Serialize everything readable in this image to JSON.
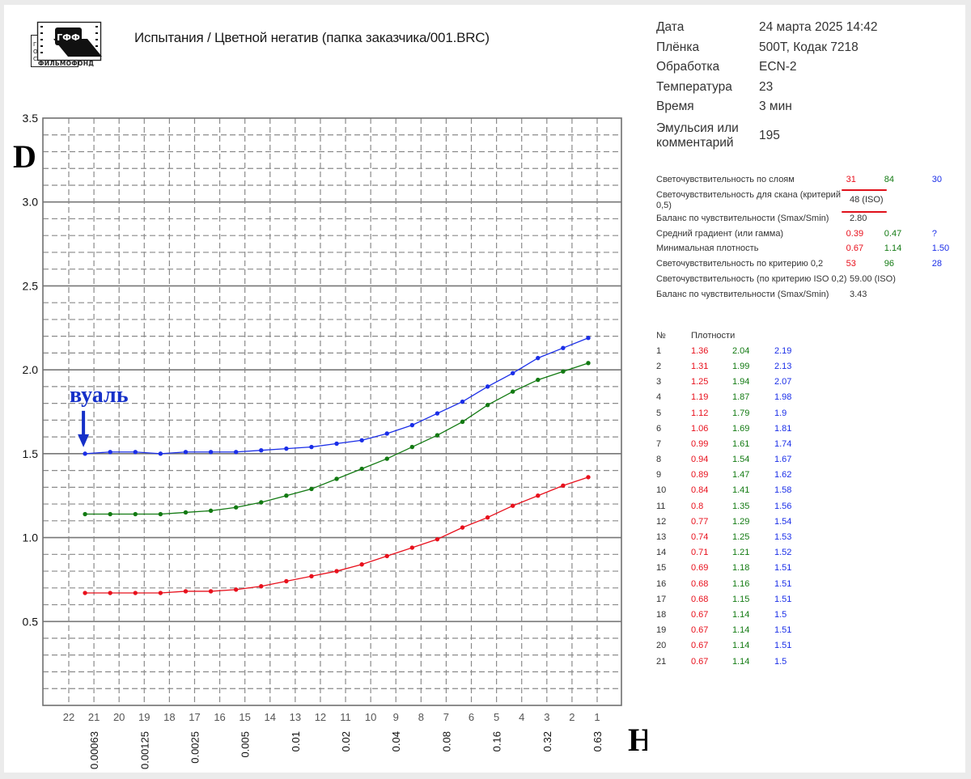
{
  "header": {
    "logo": {
      "top_text": "ГФФ",
      "side_text": "ГОС",
      "bottom_text": "ФИЛЬМОФОНД"
    },
    "title": "Испытания / Цветной негатив (папка заказчика/001.BRC)"
  },
  "info": [
    {
      "key": "Дата",
      "value": "24 марта 2025 14:42"
    },
    {
      "key": "Плёнка",
      "value": "500T, Кодак 7218"
    },
    {
      "key": "Обработка",
      "value": "ECN-2"
    },
    {
      "key": "Температура",
      "value": "23"
    },
    {
      "key": "Время",
      "value": "3 мин"
    },
    {
      "key": "Эмульсия или комментарий",
      "value": "195"
    }
  ],
  "params": [
    {
      "key": "Светочувствительность по слоям",
      "r": "31",
      "g": "84",
      "b": "30"
    },
    {
      "key": "Светочувствительность для скана (критерий 0,5)",
      "value": "48 (ISO)",
      "highlighted": true
    },
    {
      "key": "Баланс по чувствительности (Smax/Smin)",
      "value": "2.80"
    },
    {
      "key": "Средний градиент (или гамма)",
      "r": "0.39",
      "g": "0.47",
      "b": "?"
    },
    {
      "key": "Минимальная плотность",
      "r": "0.67",
      "g": "1.14",
      "b": "1.50"
    },
    {
      "key": "Светочувствительность по критерию 0,2",
      "r": "53",
      "g": "96",
      "b": "28"
    },
    {
      "key": "Светочувствительность (по критерию ISO 0,2)",
      "value": "59.00 (ISO)"
    },
    {
      "key": "Баланс по чувствительности (Smax/Smin)",
      "value": "3.43"
    }
  ],
  "densities": {
    "header_no": "№",
    "header_label": "Плотности",
    "rows": [
      {
        "n": "1",
        "r": "1.36",
        "g": "2.04",
        "b": "2.19"
      },
      {
        "n": "2",
        "r": "1.31",
        "g": "1.99",
        "b": "2.13"
      },
      {
        "n": "3",
        "r": "1.25",
        "g": "1.94",
        "b": "2.07"
      },
      {
        "n": "4",
        "r": "1.19",
        "g": "1.87",
        "b": "1.98"
      },
      {
        "n": "5",
        "r": "1.12",
        "g": "1.79",
        "b": "1.9"
      },
      {
        "n": "6",
        "r": "1.06",
        "g": "1.69",
        "b": "1.81"
      },
      {
        "n": "7",
        "r": "0.99",
        "g": "1.61",
        "b": "1.74"
      },
      {
        "n": "8",
        "r": "0.94",
        "g": "1.54",
        "b": "1.67"
      },
      {
        "n": "9",
        "r": "0.89",
        "g": "1.47",
        "b": "1.62"
      },
      {
        "n": "10",
        "r": "0.84",
        "g": "1.41",
        "b": "1.58"
      },
      {
        "n": "11",
        "r": "0.8",
        "g": "1.35",
        "b": "1.56"
      },
      {
        "n": "12",
        "r": "0.77",
        "g": "1.29",
        "b": "1.54"
      },
      {
        "n": "13",
        "r": "0.74",
        "g": "1.25",
        "b": "1.53"
      },
      {
        "n": "14",
        "r": "0.71",
        "g": "1.21",
        "b": "1.52"
      },
      {
        "n": "15",
        "r": "0.69",
        "g": "1.18",
        "b": "1.51"
      },
      {
        "n": "16",
        "r": "0.68",
        "g": "1.16",
        "b": "1.51"
      },
      {
        "n": "17",
        "r": "0.68",
        "g": "1.15",
        "b": "1.51"
      },
      {
        "n": "18",
        "r": "0.67",
        "g": "1.14",
        "b": "1.5"
      },
      {
        "n": "19",
        "r": "0.67",
        "g": "1.14",
        "b": "1.51"
      },
      {
        "n": "20",
        "r": "0.67",
        "g": "1.14",
        "b": "1.51"
      },
      {
        "n": "21",
        "r": "0.67",
        "g": "1.14",
        "b": "1.5"
      }
    ]
  },
  "colors": {
    "red": "#e8101c",
    "green": "#127a12",
    "blue": "#1a2ee8",
    "annotation": "#1530c8",
    "grid": "#8a8a8a",
    "axis": "#707070"
  },
  "chart_data": {
    "type": "line",
    "title": "",
    "xlabel": "H",
    "ylabel": "D",
    "ylim": [
      0,
      3.5
    ],
    "y_ticks": [
      "3.5",
      "3.0",
      "2.5",
      "2.0",
      "1.5",
      "1.0",
      "0.5"
    ],
    "x_step_labels": [
      "22",
      "21",
      "20",
      "19",
      "18",
      "17",
      "16",
      "15",
      "14",
      "13",
      "12",
      "11",
      "10",
      "9",
      "8",
      "7",
      "6",
      "5",
      "4",
      "3",
      "2",
      "1"
    ],
    "x_exposure_labels": [
      {
        "step": 21,
        "label": "0.00063"
      },
      {
        "step": 19,
        "label": "0.00125"
      },
      {
        "step": 17,
        "label": "0.0025"
      },
      {
        "step": 15,
        "label": "0.005"
      },
      {
        "step": 13,
        "label": "0.01"
      },
      {
        "step": 11,
        "label": "0.02"
      },
      {
        "step": 9,
        "label": "0.04"
      },
      {
        "step": 7,
        "label": "0.08"
      },
      {
        "step": 5,
        "label": "0.16"
      },
      {
        "step": 3,
        "label": "0.32"
      },
      {
        "step": 1,
        "label": "0.63"
      }
    ],
    "grid": true,
    "x": [
      21,
      20,
      19,
      18,
      17,
      16,
      15,
      14,
      13,
      12,
      11,
      10,
      9,
      8,
      7,
      6,
      5,
      4,
      3,
      2,
      1
    ],
    "series": [
      {
        "name": "Blue",
        "color": "#1a2ee8",
        "values": [
          1.5,
          1.51,
          1.51,
          1.5,
          1.51,
          1.51,
          1.51,
          1.52,
          1.53,
          1.54,
          1.56,
          1.58,
          1.62,
          1.67,
          1.74,
          1.81,
          1.9,
          1.98,
          2.07,
          2.13,
          2.19
        ]
      },
      {
        "name": "Green",
        "color": "#127a12",
        "values": [
          1.14,
          1.14,
          1.14,
          1.14,
          1.15,
          1.16,
          1.18,
          1.21,
          1.25,
          1.29,
          1.35,
          1.41,
          1.47,
          1.54,
          1.61,
          1.69,
          1.79,
          1.87,
          1.94,
          1.99,
          2.04
        ]
      },
      {
        "name": "Red",
        "color": "#e8101c",
        "values": [
          0.67,
          0.67,
          0.67,
          0.67,
          0.68,
          0.68,
          0.69,
          0.71,
          0.74,
          0.77,
          0.8,
          0.84,
          0.89,
          0.94,
          0.99,
          1.06,
          1.12,
          1.19,
          1.25,
          1.31,
          1.36
        ]
      }
    ],
    "annotations": [
      {
        "text": "вуаль",
        "step": 21,
        "series": "Blue",
        "arrow": "down"
      }
    ]
  }
}
